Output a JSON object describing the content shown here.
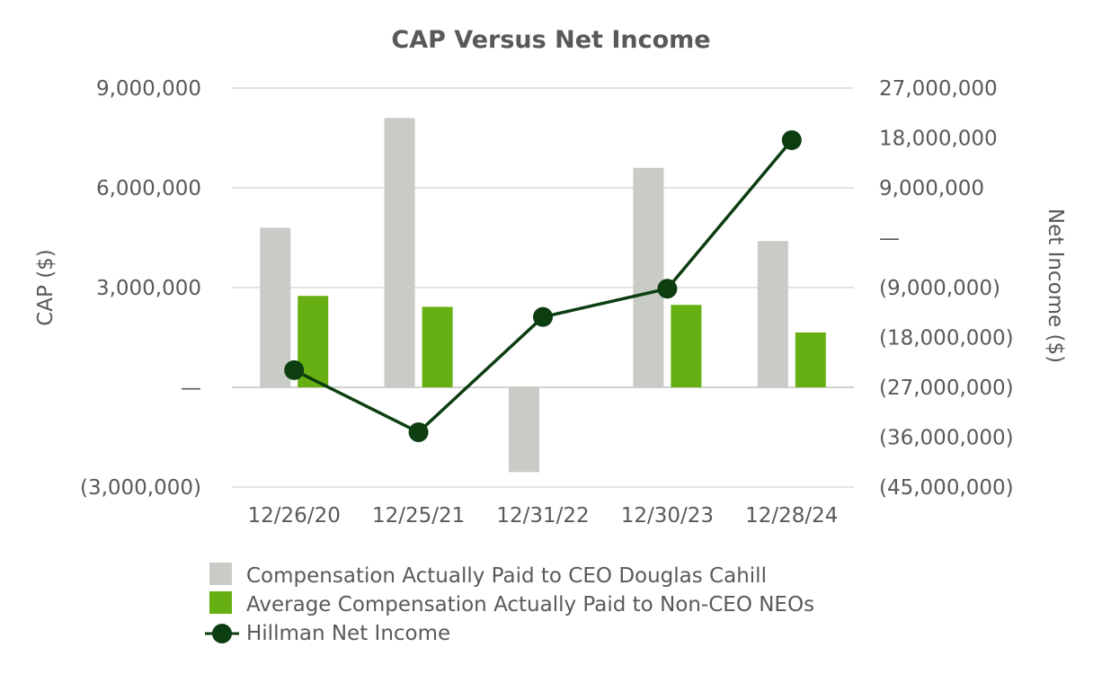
{
  "chart_data": {
    "type": "bar+line",
    "title": "CAP Versus Net Income",
    "categories": [
      "12/26/20",
      "12/25/21",
      "12/31/22",
      "12/30/23",
      "12/28/24"
    ],
    "left_axis": {
      "label": "CAP ($)",
      "range": [
        -3000000,
        9000000
      ],
      "ticks": [
        9000000,
        6000000,
        3000000,
        0,
        -3000000
      ],
      "tick_labels": [
        "9,000,000",
        "6,000,000",
        "3,000,000",
        "—",
        "(3,000,000)"
      ]
    },
    "right_axis": {
      "label": "Net Income ($)",
      "range": [
        -45000000,
        27000000
      ],
      "ticks": [
        27000000,
        18000000,
        9000000,
        0,
        -9000000,
        -18000000,
        -27000000,
        -36000000,
        -45000000
      ],
      "tick_labels": [
        "27,000,000",
        "18,000,000",
        "9,000,000",
        "—",
        "(9,000,000)",
        "(18,000,000)",
        "(27,000,000)",
        "(36,000,000)",
        "(45,000,000)"
      ]
    },
    "series": [
      {
        "name": "Compensation Actually Paid to CEO Douglas Cahill",
        "type": "bar",
        "axis": "left",
        "color": "#c8cbc6",
        "values": [
          4800000,
          8100000,
          -2550000,
          6600000,
          4400000
        ]
      },
      {
        "name": "Average Compensation Actually Paid to Non-CEO NEOs",
        "type": "bar",
        "axis": "left",
        "color": "#66b014",
        "values": [
          2750000,
          2420000,
          null,
          2480000,
          1650000
        ]
      },
      {
        "name": "Hillman Net Income",
        "type": "line",
        "axis": "right",
        "color": "#0d3e12",
        "values": [
          -23900000,
          -35100000,
          -14300000,
          -9200000,
          17600000
        ]
      }
    ],
    "grid": true,
    "legend_position": "bottom"
  }
}
